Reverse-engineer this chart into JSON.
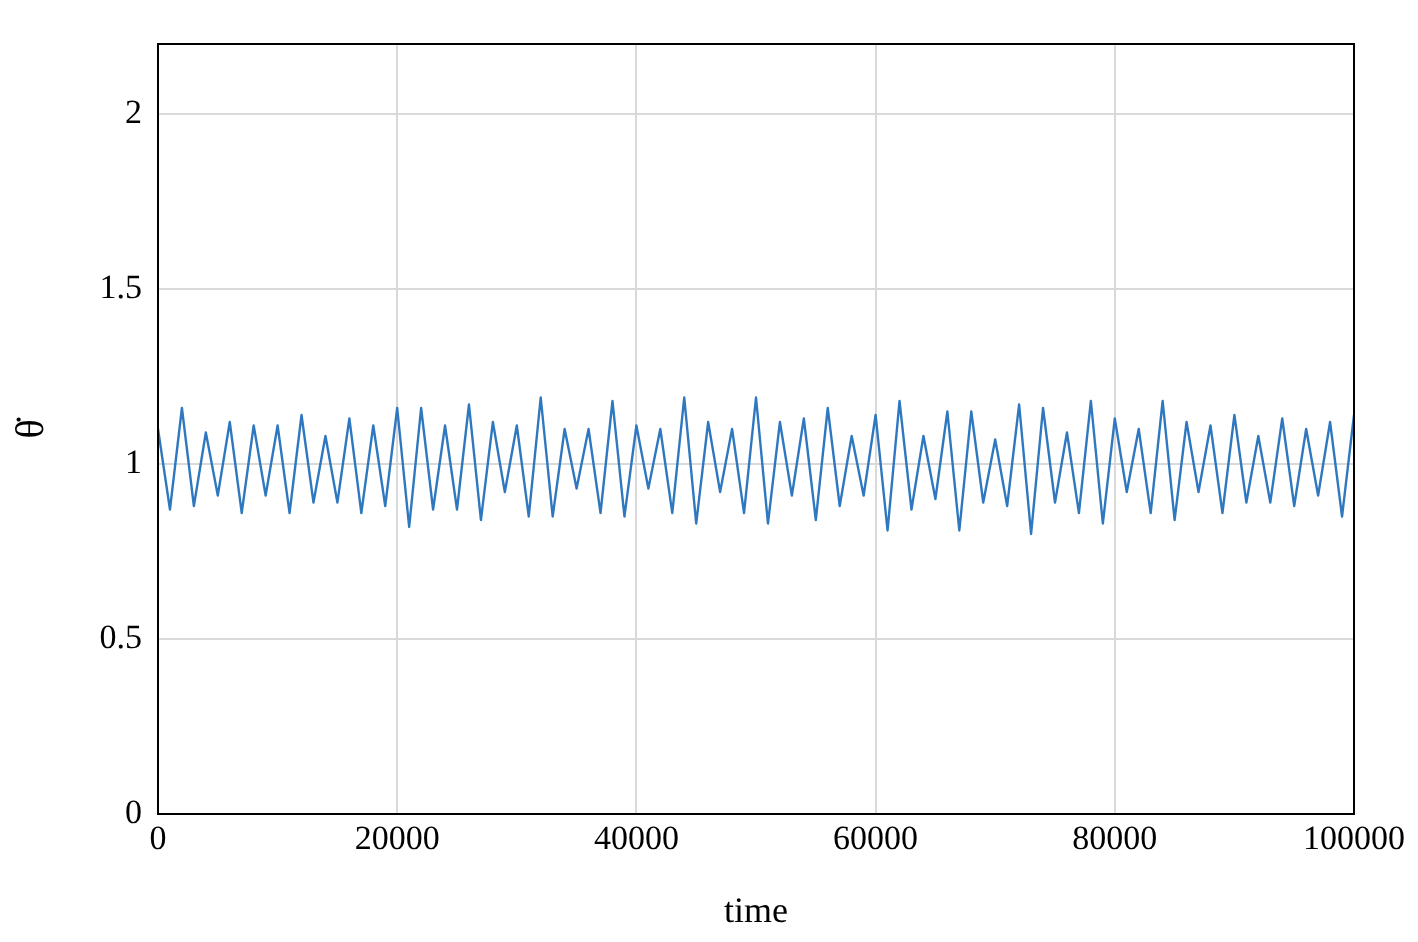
{
  "chart_data": {
    "type": "line",
    "xlabel": "time",
    "ylabel": "θ̇",
    "x": [
      0,
      1000,
      2000,
      3000,
      4000,
      5000,
      6000,
      7000,
      8000,
      9000,
      10000,
      11000,
      12000,
      13000,
      14000,
      15000,
      16000,
      17000,
      18000,
      19000,
      20000,
      21000,
      22000,
      23000,
      24000,
      25000,
      26000,
      27000,
      28000,
      29000,
      30000,
      31000,
      32000,
      33000,
      34000,
      35000,
      36000,
      37000,
      38000,
      39000,
      40000,
      41000,
      42000,
      43000,
      44000,
      45000,
      46000,
      47000,
      48000,
      49000,
      50000,
      51000,
      52000,
      53000,
      54000,
      55000,
      56000,
      57000,
      58000,
      59000,
      60000,
      61000,
      62000,
      63000,
      64000,
      65000,
      66000,
      67000,
      68000,
      69000,
      70000,
      71000,
      72000,
      73000,
      74000,
      75000,
      76000,
      77000,
      78000,
      79000,
      80000,
      81000,
      82000,
      83000,
      84000,
      85000,
      86000,
      87000,
      88000,
      89000,
      90000,
      91000,
      92000,
      93000,
      94000,
      95000,
      96000,
      97000,
      98000,
      99000,
      100000
    ],
    "series": [
      {
        "color": "#2f78c0",
        "values": [
          1.1,
          0.87,
          1.16,
          0.88,
          1.09,
          0.91,
          1.12,
          0.86,
          1.11,
          0.91,
          1.11,
          0.86,
          1.14,
          0.89,
          1.08,
          0.89,
          1.13,
          0.86,
          1.11,
          0.88,
          1.16,
          0.82,
          1.16,
          0.87,
          1.11,
          0.87,
          1.17,
          0.84,
          1.12,
          0.92,
          1.11,
          0.85,
          1.19,
          0.85,
          1.1,
          0.93,
          1.1,
          0.86,
          1.18,
          0.85,
          1.11,
          0.93,
          1.1,
          0.86,
          1.19,
          0.83,
          1.12,
          0.92,
          1.1,
          0.86,
          1.19,
          0.83,
          1.12,
          0.91,
          1.13,
          0.84,
          1.16,
          0.88,
          1.08,
          0.91,
          1.14,
          0.81,
          1.18,
          0.87,
          1.08,
          0.9,
          1.15,
          0.81,
          1.15,
          0.89,
          1.07,
          0.88,
          1.17,
          0.8,
          1.16,
          0.89,
          1.09,
          0.86,
          1.18,
          0.83,
          1.13,
          0.92,
          1.1,
          0.86,
          1.18,
          0.84,
          1.12,
          0.92,
          1.11,
          0.86,
          1.14,
          0.89,
          1.08,
          0.89,
          1.13,
          0.88,
          1.1,
          0.91,
          1.12,
          0.85,
          1.14
        ]
      }
    ],
    "xlim": [
      0,
      100000
    ],
    "xticks": [
      0,
      20000,
      40000,
      60000,
      80000,
      100000
    ],
    "ylim": [
      0,
      2.2
    ],
    "yticks": [
      0,
      0.5,
      1,
      1.5,
      2
    ],
    "grid": true,
    "legend": false,
    "marker": "none",
    "line_style": "solid"
  }
}
